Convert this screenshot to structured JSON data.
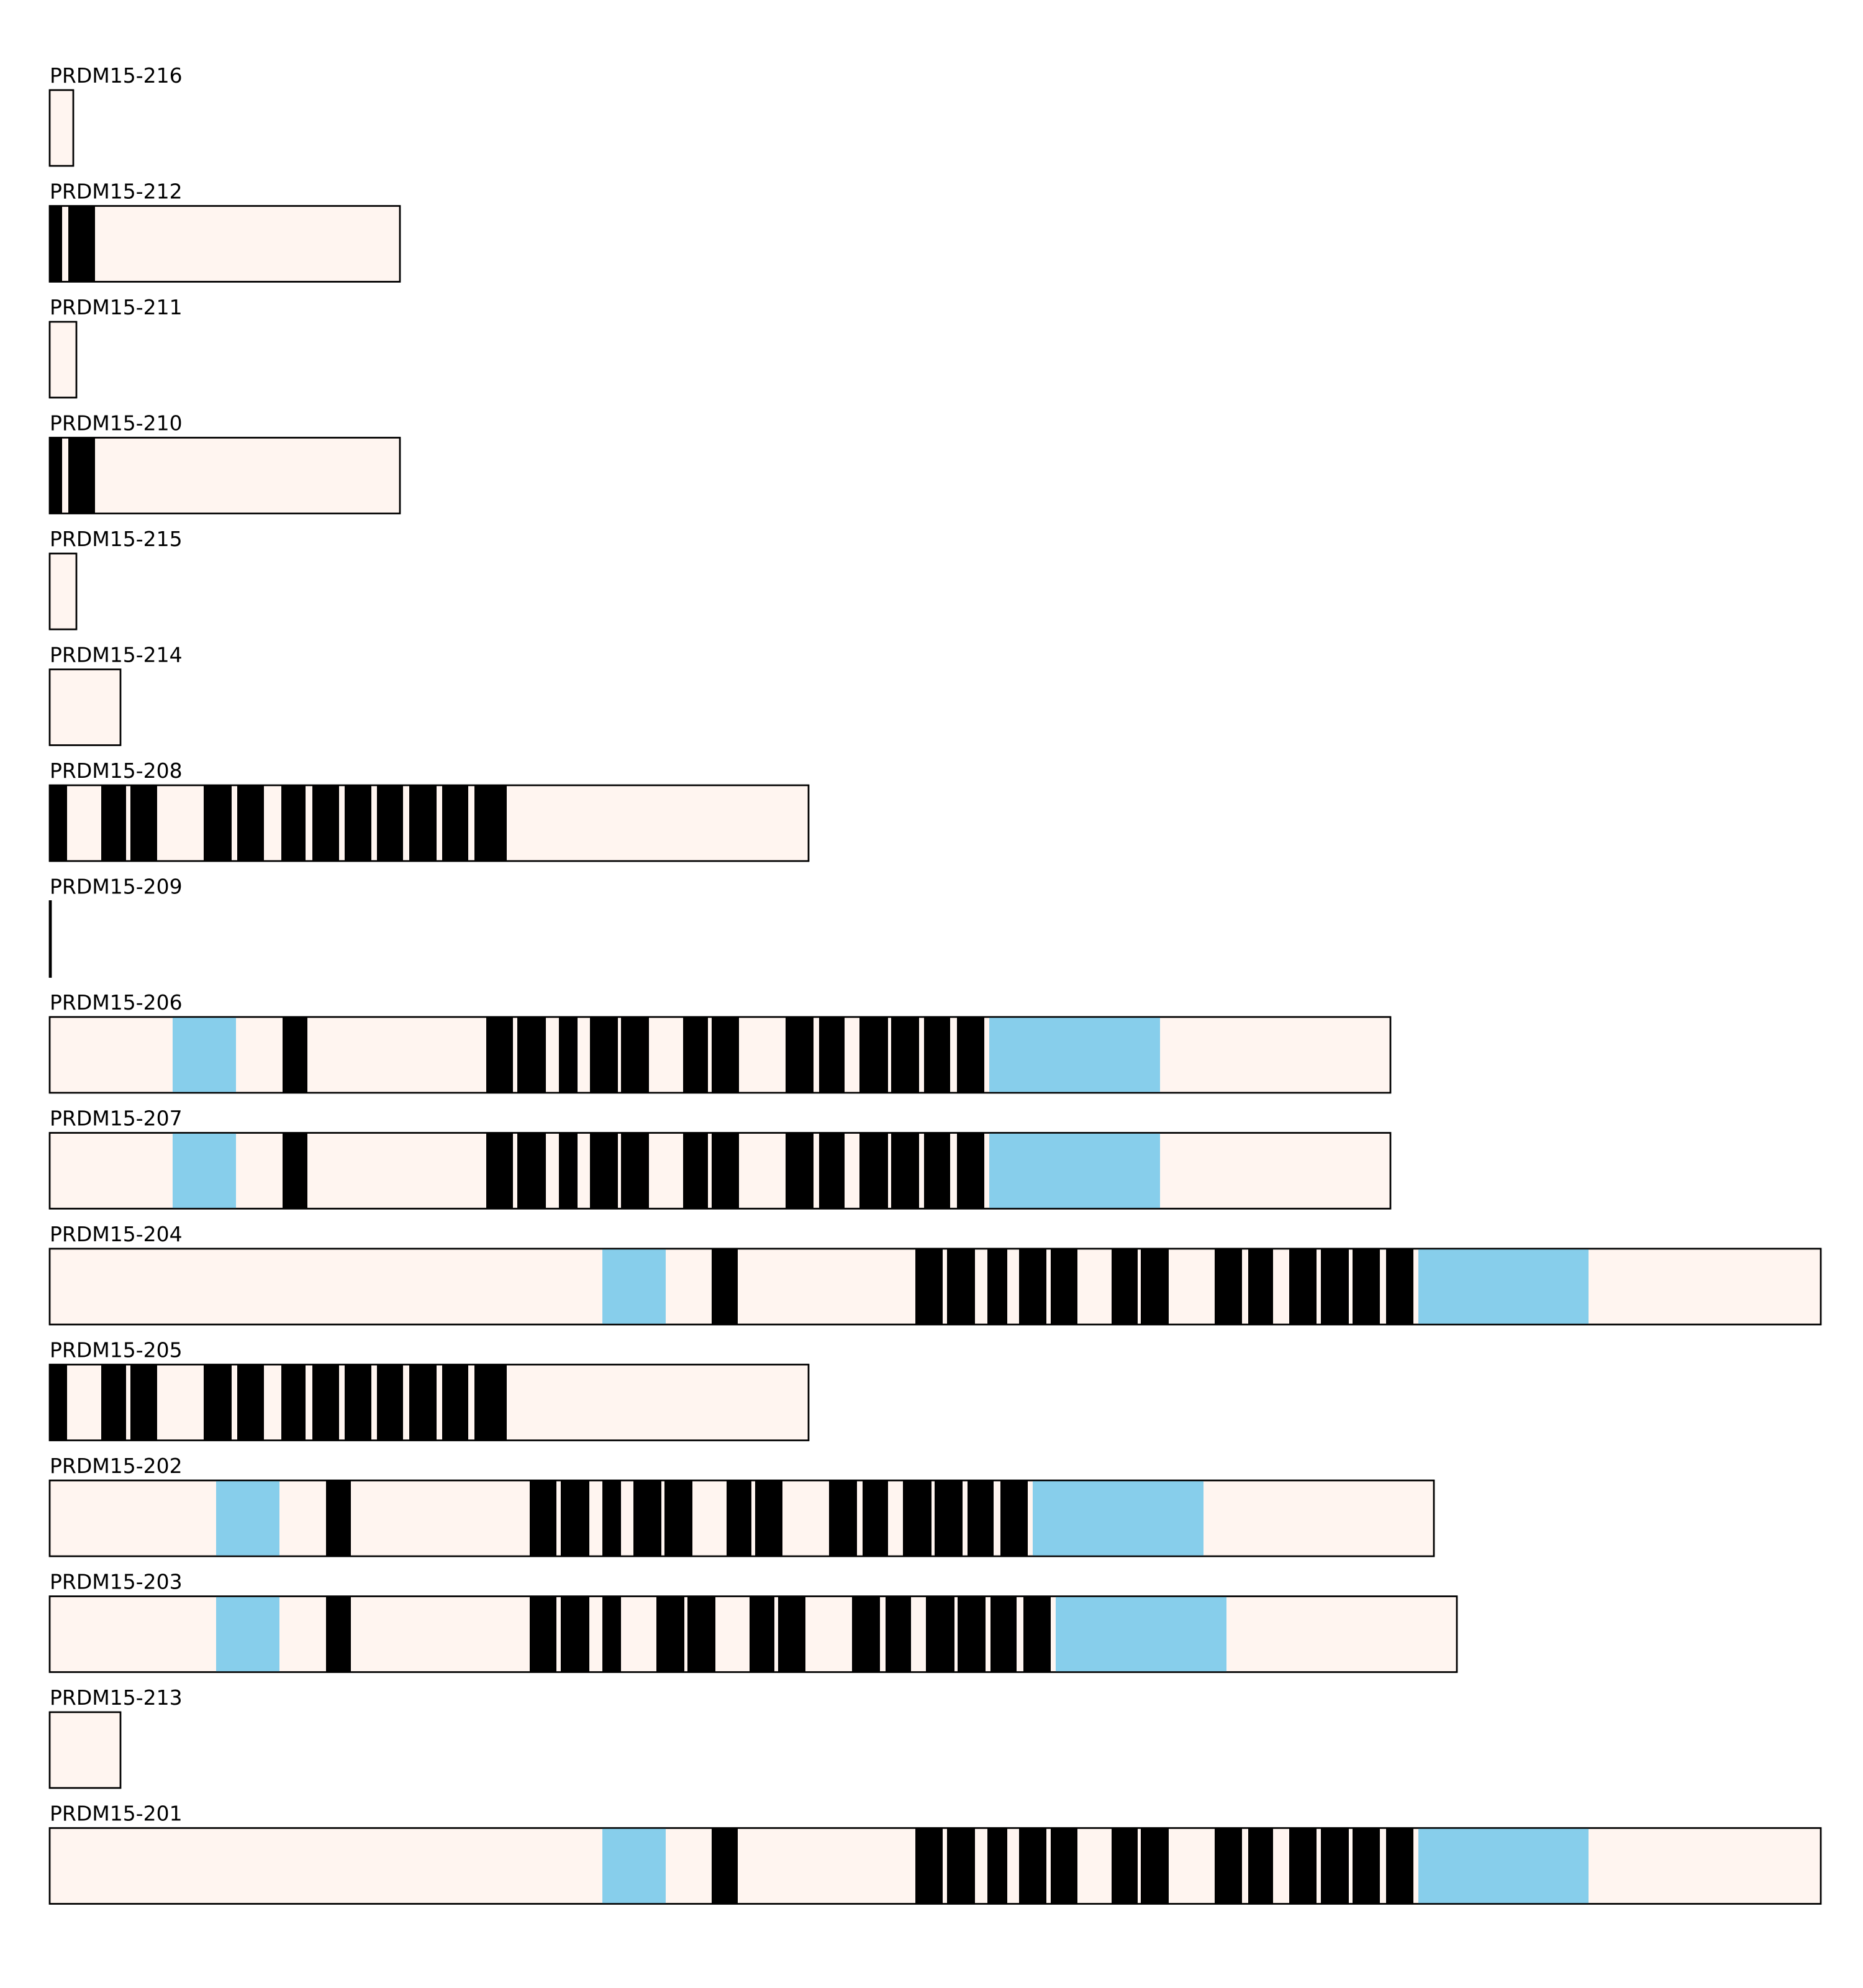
{
  "colors": {
    "background": "#ffffff",
    "transcript_fill": "#fff5f0",
    "outline": "#000000",
    "black_segment": "#000000",
    "blue_segment": "#87ceeb"
  },
  "transcripts": [
    {
      "name": "PRDM15-216",
      "length": 38,
      "segments": []
    },
    {
      "name": "PRDM15-212",
      "length": 564,
      "segments": [
        {
          "start": 0,
          "end": 20,
          "color": "black"
        },
        {
          "start": 30,
          "end": 73,
          "color": "black"
        }
      ]
    },
    {
      "name": "PRDM15-211",
      "length": 43,
      "segments": []
    },
    {
      "name": "PRDM15-210",
      "length": 564,
      "segments": [
        {
          "start": 0,
          "end": 20,
          "color": "black"
        },
        {
          "start": 30,
          "end": 73,
          "color": "black"
        }
      ]
    },
    {
      "name": "PRDM15-215",
      "length": 43,
      "segments": []
    },
    {
      "name": "PRDM15-214",
      "length": 114,
      "segments": []
    },
    {
      "name": "PRDM15-208",
      "length": 1222,
      "segments": [
        {
          "start": 0,
          "end": 28,
          "color": "black"
        },
        {
          "start": 83,
          "end": 123,
          "color": "black"
        },
        {
          "start": 130,
          "end": 173,
          "color": "black"
        },
        {
          "start": 248,
          "end": 293,
          "color": "black"
        },
        {
          "start": 302,
          "end": 345,
          "color": "black"
        },
        {
          "start": 373,
          "end": 412,
          "color": "black"
        },
        {
          "start": 423,
          "end": 466,
          "color": "black"
        },
        {
          "start": 475,
          "end": 518,
          "color": "black"
        },
        {
          "start": 527,
          "end": 569,
          "color": "black"
        },
        {
          "start": 579,
          "end": 623,
          "color": "black"
        },
        {
          "start": 632,
          "end": 674,
          "color": "black"
        },
        {
          "start": 684,
          "end": 736,
          "color": "black"
        }
      ]
    },
    {
      "name": "PRDM15-209",
      "length": 2,
      "segments": []
    },
    {
      "name": "PRDM15-206",
      "length": 2159,
      "segments": [
        {
          "start": 198,
          "end": 300,
          "color": "blue"
        },
        {
          "start": 375,
          "end": 415,
          "color": "black"
        },
        {
          "start": 703,
          "end": 746,
          "color": "black"
        },
        {
          "start": 753,
          "end": 799,
          "color": "black"
        },
        {
          "start": 820,
          "end": 850,
          "color": "black"
        },
        {
          "start": 870,
          "end": 915,
          "color": "black"
        },
        {
          "start": 920,
          "end": 965,
          "color": "black"
        },
        {
          "start": 1020,
          "end": 1060,
          "color": "black"
        },
        {
          "start": 1066,
          "end": 1110,
          "color": "black"
        },
        {
          "start": 1185,
          "end": 1230,
          "color": "black"
        },
        {
          "start": 1239,
          "end": 1280,
          "color": "black"
        },
        {
          "start": 1304,
          "end": 1350,
          "color": "black"
        },
        {
          "start": 1355,
          "end": 1400,
          "color": "black"
        },
        {
          "start": 1408,
          "end": 1450,
          "color": "black"
        },
        {
          "start": 1461,
          "end": 1505,
          "color": "black"
        },
        {
          "start": 1513,
          "end": 1788,
          "color": "blue"
        }
      ]
    },
    {
      "name": "PRDM15-207",
      "length": 2159,
      "segments": [
        {
          "start": 198,
          "end": 300,
          "color": "blue"
        },
        {
          "start": 375,
          "end": 415,
          "color": "black"
        },
        {
          "start": 703,
          "end": 746,
          "color": "black"
        },
        {
          "start": 753,
          "end": 799,
          "color": "black"
        },
        {
          "start": 820,
          "end": 850,
          "color": "black"
        },
        {
          "start": 870,
          "end": 915,
          "color": "black"
        },
        {
          "start": 920,
          "end": 965,
          "color": "black"
        },
        {
          "start": 1020,
          "end": 1060,
          "color": "black"
        },
        {
          "start": 1066,
          "end": 1110,
          "color": "black"
        },
        {
          "start": 1185,
          "end": 1230,
          "color": "black"
        },
        {
          "start": 1239,
          "end": 1280,
          "color": "black"
        },
        {
          "start": 1304,
          "end": 1350,
          "color": "black"
        },
        {
          "start": 1355,
          "end": 1400,
          "color": "black"
        },
        {
          "start": 1408,
          "end": 1450,
          "color": "black"
        },
        {
          "start": 1461,
          "end": 1505,
          "color": "black"
        },
        {
          "start": 1513,
          "end": 1788,
          "color": "blue"
        }
      ]
    },
    {
      "name": "PRDM15-204",
      "length": 2852,
      "segments": [
        {
          "start": 890,
          "end": 992,
          "color": "blue"
        },
        {
          "start": 1066,
          "end": 1108,
          "color": "black"
        },
        {
          "start": 1394,
          "end": 1438,
          "color": "black"
        },
        {
          "start": 1445,
          "end": 1490,
          "color": "black"
        },
        {
          "start": 1510,
          "end": 1542,
          "color": "black"
        },
        {
          "start": 1561,
          "end": 1605,
          "color": "black"
        },
        {
          "start": 1612,
          "end": 1655,
          "color": "black"
        },
        {
          "start": 1710,
          "end": 1752,
          "color": "black"
        },
        {
          "start": 1757,
          "end": 1802,
          "color": "black"
        },
        {
          "start": 1876,
          "end": 1920,
          "color": "black"
        },
        {
          "start": 1930,
          "end": 1970,
          "color": "black"
        },
        {
          "start": 1996,
          "end": 2040,
          "color": "black"
        },
        {
          "start": 2047,
          "end": 2092,
          "color": "black"
        },
        {
          "start": 2098,
          "end": 2142,
          "color": "black"
        },
        {
          "start": 2152,
          "end": 2196,
          "color": "black"
        },
        {
          "start": 2204,
          "end": 2478,
          "color": "blue"
        }
      ]
    },
    {
      "name": "PRDM15-205",
      "length": 1222,
      "segments": [
        {
          "start": 0,
          "end": 28,
          "color": "black"
        },
        {
          "start": 83,
          "end": 123,
          "color": "black"
        },
        {
          "start": 130,
          "end": 173,
          "color": "black"
        },
        {
          "start": 248,
          "end": 293,
          "color": "black"
        },
        {
          "start": 302,
          "end": 345,
          "color": "black"
        },
        {
          "start": 373,
          "end": 412,
          "color": "black"
        },
        {
          "start": 423,
          "end": 466,
          "color": "black"
        },
        {
          "start": 475,
          "end": 518,
          "color": "black"
        },
        {
          "start": 527,
          "end": 569,
          "color": "black"
        },
        {
          "start": 579,
          "end": 623,
          "color": "black"
        },
        {
          "start": 632,
          "end": 674,
          "color": "black"
        },
        {
          "start": 684,
          "end": 736,
          "color": "black"
        }
      ]
    },
    {
      "name": "PRDM15-202",
      "length": 2229,
      "segments": [
        {
          "start": 268,
          "end": 370,
          "color": "blue"
        },
        {
          "start": 445,
          "end": 485,
          "color": "black"
        },
        {
          "start": 773,
          "end": 816,
          "color": "black"
        },
        {
          "start": 823,
          "end": 869,
          "color": "black"
        },
        {
          "start": 890,
          "end": 920,
          "color": "black"
        },
        {
          "start": 940,
          "end": 985,
          "color": "black"
        },
        {
          "start": 990,
          "end": 1035,
          "color": "black"
        },
        {
          "start": 1090,
          "end": 1130,
          "color": "black"
        },
        {
          "start": 1136,
          "end": 1180,
          "color": "black"
        },
        {
          "start": 1255,
          "end": 1300,
          "color": "black"
        },
        {
          "start": 1309,
          "end": 1350,
          "color": "black"
        },
        {
          "start": 1374,
          "end": 1420,
          "color": "black"
        },
        {
          "start": 1425,
          "end": 1470,
          "color": "black"
        },
        {
          "start": 1478,
          "end": 1520,
          "color": "black"
        },
        {
          "start": 1531,
          "end": 1575,
          "color": "black"
        },
        {
          "start": 1583,
          "end": 1858,
          "color": "blue"
        }
      ]
    },
    {
      "name": "PRDM15-203",
      "length": 2266,
      "segments": [
        {
          "start": 268,
          "end": 370,
          "color": "blue"
        },
        {
          "start": 445,
          "end": 485,
          "color": "black"
        },
        {
          "start": 773,
          "end": 816,
          "color": "black"
        },
        {
          "start": 823,
          "end": 869,
          "color": "black"
        },
        {
          "start": 890,
          "end": 920,
          "color": "black"
        },
        {
          "start": 977,
          "end": 1022,
          "color": "black"
        },
        {
          "start": 1027,
          "end": 1072,
          "color": "black"
        },
        {
          "start": 1127,
          "end": 1167,
          "color": "black"
        },
        {
          "start": 1173,
          "end": 1217,
          "color": "black"
        },
        {
          "start": 1292,
          "end": 1337,
          "color": "black"
        },
        {
          "start": 1346,
          "end": 1387,
          "color": "black"
        },
        {
          "start": 1411,
          "end": 1457,
          "color": "black"
        },
        {
          "start": 1462,
          "end": 1507,
          "color": "black"
        },
        {
          "start": 1515,
          "end": 1557,
          "color": "black"
        },
        {
          "start": 1568,
          "end": 1612,
          "color": "black"
        },
        {
          "start": 1620,
          "end": 1895,
          "color": "blue"
        }
      ]
    },
    {
      "name": "PRDM15-213",
      "length": 114,
      "segments": []
    },
    {
      "name": "PRDM15-201",
      "length": 2852,
      "segments": [
        {
          "start": 890,
          "end": 992,
          "color": "blue"
        },
        {
          "start": 1066,
          "end": 1108,
          "color": "black"
        },
        {
          "start": 1394,
          "end": 1438,
          "color": "black"
        },
        {
          "start": 1445,
          "end": 1490,
          "color": "black"
        },
        {
          "start": 1510,
          "end": 1542,
          "color": "black"
        },
        {
          "start": 1561,
          "end": 1605,
          "color": "black"
        },
        {
          "start": 1612,
          "end": 1655,
          "color": "black"
        },
        {
          "start": 1710,
          "end": 1752,
          "color": "black"
        },
        {
          "start": 1757,
          "end": 1802,
          "color": "black"
        },
        {
          "start": 1876,
          "end": 1920,
          "color": "black"
        },
        {
          "start": 1930,
          "end": 1970,
          "color": "black"
        },
        {
          "start": 1996,
          "end": 2040,
          "color": "black"
        },
        {
          "start": 2047,
          "end": 2092,
          "color": "black"
        },
        {
          "start": 2098,
          "end": 2142,
          "color": "black"
        },
        {
          "start": 2152,
          "end": 2196,
          "color": "black"
        },
        {
          "start": 2204,
          "end": 2478,
          "color": "blue"
        }
      ]
    }
  ]
}
